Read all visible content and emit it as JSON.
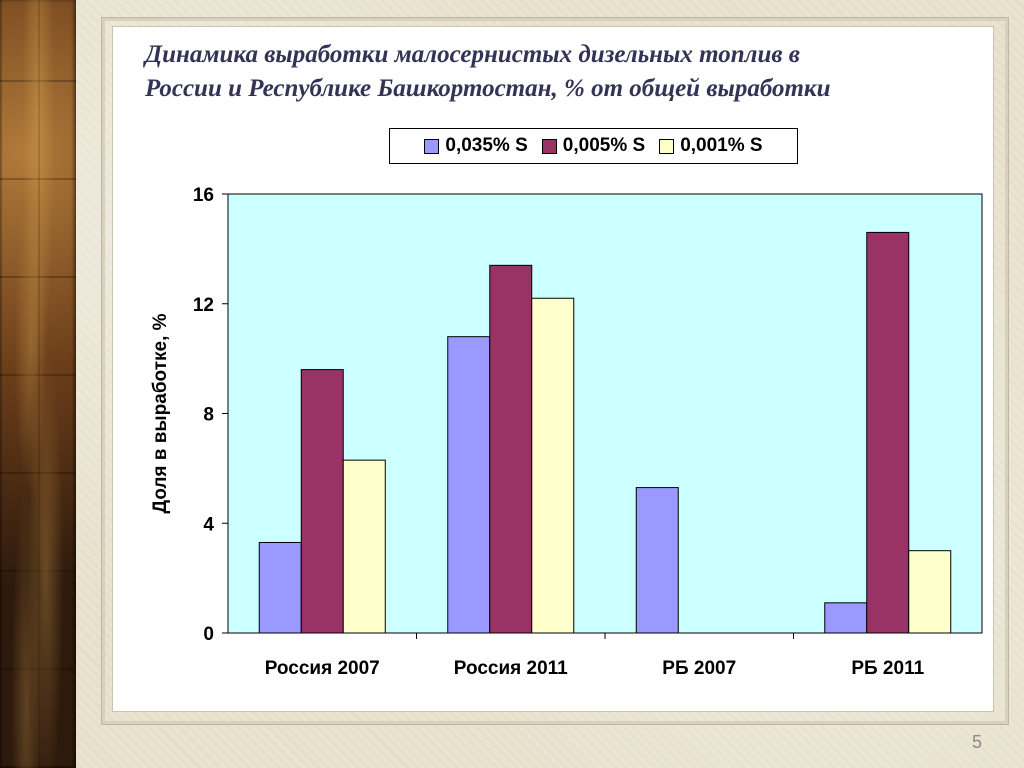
{
  "slide": {
    "title_lines": [
      "Динамика выработки малосернистых дизельных топлив в",
      "России и Республике Башкортостан, % от общей выработки"
    ],
    "slide_number": "5"
  },
  "chart_data": {
    "type": "bar",
    "title": "Динамика выработки малосернистых дизельных топлив в России и Республике Башкортостан, % от общей выработки",
    "categories": [
      "Россия 2007",
      "Россия 2011",
      "РБ 2007",
      "РБ 2011"
    ],
    "series": [
      {
        "name": "0,035% S",
        "color": "#9999ff",
        "values": [
          3.3,
          10.8,
          5.3,
          1.1
        ]
      },
      {
        "name": "0,005% S",
        "color": "#993366",
        "values": [
          9.6,
          13.4,
          0,
          14.6
        ]
      },
      {
        "name": "0,001% S",
        "color": "#ffffcc",
        "values": [
          6.3,
          12.2,
          0,
          3.0
        ]
      }
    ],
    "ylabel": "Доля в выработке, %",
    "ylim": [
      0,
      16
    ],
    "yticks": [
      0,
      4,
      8,
      12,
      16
    ],
    "plot_background": "#ccffff",
    "grid": false,
    "legend_position": "top"
  }
}
